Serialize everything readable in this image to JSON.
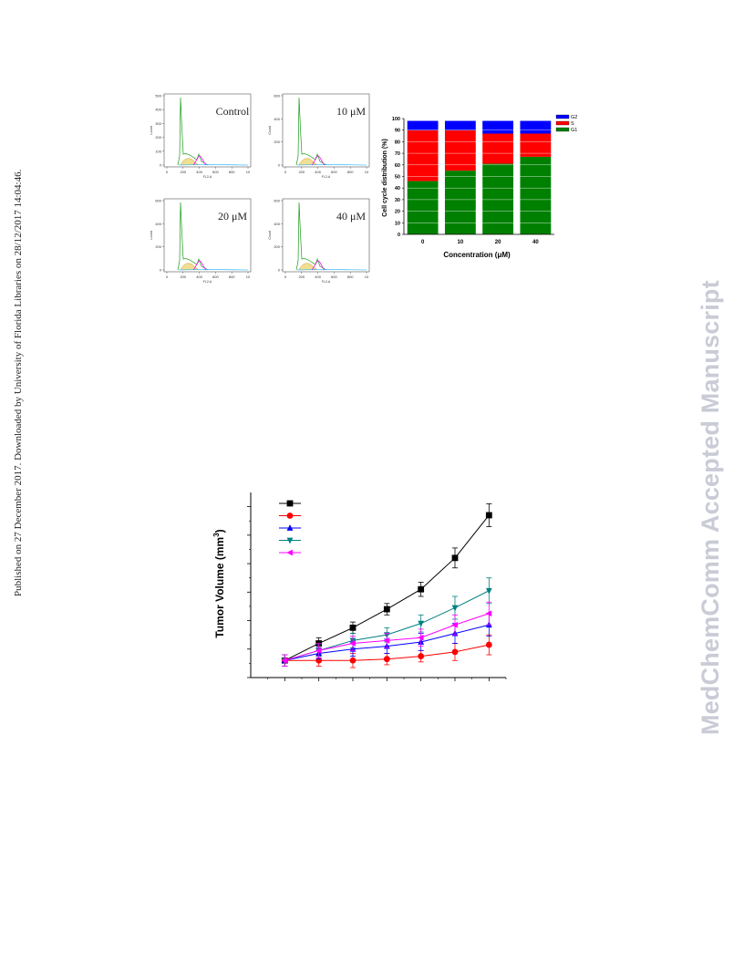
{
  "side_text": {
    "left": "Published on 27 December 2017. Downloaded by University of Florida Libraries on 28/12/2017 14:04:46.",
    "right": "MedChemComm Accepted Manuscript"
  },
  "histograms": {
    "xlabel": "FL2-A",
    "ylabel": "Count",
    "xticks": [
      "0",
      "200",
      "400",
      "600",
      "800",
      "10"
    ],
    "panels": [
      {
        "label": "Control",
        "yticks": [
          "500",
          "400",
          "300",
          "200",
          "100",
          "0"
        ]
      },
      {
        "label": "10 μM",
        "yticks": [
          "600",
          "400",
          "200",
          "0"
        ]
      },
      {
        "label": "20 μM",
        "yticks": [
          "600",
          "400",
          "200",
          "0"
        ]
      },
      {
        "label": "40 μM",
        "yticks": [
          "600",
          "400",
          "200",
          "0"
        ]
      }
    ]
  },
  "chart_data": [
    {
      "type": "bar",
      "stacked": true,
      "categories": [
        "0",
        "10",
        "20",
        "40"
      ],
      "series": [
        {
          "name": "G1",
          "color": "#008000",
          "values": [
            46,
            55,
            61,
            67
          ]
        },
        {
          "name": "S",
          "color": "#ff0000",
          "values": [
            44,
            35,
            26,
            20
          ]
        },
        {
          "name": "G2",
          "color": "#0000ff",
          "values": [
            8,
            8,
            11,
            11
          ]
        }
      ],
      "xlabel": "Concentration (μM)",
      "ylabel": "Cell cycle distribution (%)",
      "yticks": [
        "0",
        "10",
        "20",
        "30",
        "40",
        "50",
        "60",
        "70",
        "80",
        "90",
        "100"
      ],
      "ylim": [
        0,
        100
      ],
      "legend": "top-right"
    },
    {
      "type": "line",
      "ylabel": "Tumor Volume (mm",
      "ylabel_sup": "3",
      "ylabel_end": ")",
      "x": [
        0,
        1,
        2,
        3,
        4,
        5,
        6
      ],
      "ylim": [
        0,
        6.5
      ],
      "series": [
        {
          "color": "#000000",
          "marker": "square",
          "values": [
            0.6,
            1.2,
            1.75,
            2.4,
            3.1,
            4.2,
            5.7
          ],
          "errors": [
            0.2,
            0.2,
            0.2,
            0.2,
            0.25,
            0.35,
            0.4
          ]
        },
        {
          "color": "#ff0000",
          "marker": "circle",
          "values": [
            0.6,
            0.6,
            0.6,
            0.65,
            0.75,
            0.9,
            1.15
          ],
          "errors": [
            0.2,
            0.2,
            0.25,
            0.2,
            0.2,
            0.3,
            0.35
          ]
        },
        {
          "color": "#0000ff",
          "marker": "triangle-up",
          "values": [
            0.6,
            0.85,
            1.0,
            1.1,
            1.25,
            1.55,
            1.85
          ],
          "errors": [
            0.2,
            0.2,
            0.25,
            0.25,
            0.3,
            0.35,
            0.4
          ]
        },
        {
          "color": "#008080",
          "marker": "triangle-down",
          "values": [
            0.6,
            0.95,
            1.3,
            1.5,
            1.9,
            2.45,
            3.05
          ],
          "errors": [
            0.2,
            0.2,
            0.25,
            0.25,
            0.3,
            0.4,
            0.45
          ]
        },
        {
          "color": "#ff00ff",
          "marker": "triangle-left",
          "values": [
            0.6,
            0.95,
            1.2,
            1.3,
            1.4,
            1.85,
            2.25
          ],
          "errors": [
            0.2,
            0.25,
            0.25,
            0.25,
            0.3,
            0.35,
            0.4
          ]
        }
      ],
      "legend": "top-left"
    }
  ]
}
